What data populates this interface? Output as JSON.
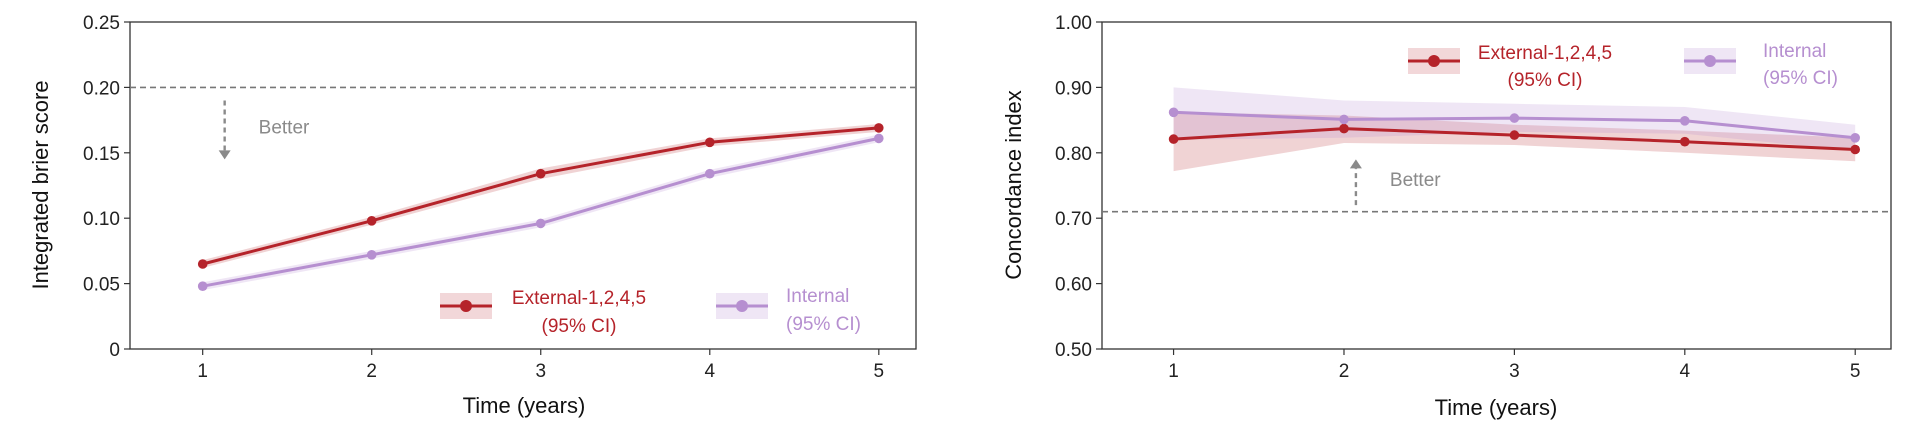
{
  "chart_data": [
    {
      "type": "line",
      "title": "",
      "xlabel": "Time (years)",
      "ylabel": "Integrated brier score",
      "x": [
        1,
        2,
        3,
        4,
        5
      ],
      "xticks": [
        "1",
        "2",
        "3",
        "4",
        "5"
      ],
      "xlim": [
        0.57,
        5.22
      ],
      "ylim": [
        0,
        0.25
      ],
      "yticks": [
        0,
        0.05,
        0.1,
        0.15,
        0.2,
        0.25
      ],
      "ytick_labels": [
        "0",
        "0.05",
        "0.10",
        "0.15",
        "0.20",
        "0.25"
      ],
      "grid": false,
      "legend_position": "bottom-right",
      "series": [
        {
          "name": "External-1,2,4,5",
          "ci_label": "(95% CI)",
          "color": "#b5232a",
          "values": [
            0.065,
            0.098,
            0.134,
            0.158,
            0.169
          ],
          "ci_lower": [
            0.062,
            0.095,
            0.13,
            0.155,
            0.166
          ],
          "ci_upper": [
            0.068,
            0.101,
            0.138,
            0.161,
            0.172
          ]
        },
        {
          "name": "Internal",
          "ci_label": "(95% CI)",
          "color": "#b68fd0",
          "values": [
            0.048,
            0.072,
            0.096,
            0.134,
            0.161
          ],
          "ci_lower": [
            0.045,
            0.069,
            0.093,
            0.131,
            0.158
          ],
          "ci_upper": [
            0.051,
            0.075,
            0.099,
            0.137,
            0.164
          ]
        }
      ],
      "reference_line": {
        "y": 0.2,
        "style": "dashed",
        "color": "#777777"
      },
      "annotation": {
        "text": "Better",
        "direction": "down",
        "x": 1.13,
        "y_from": 0.19,
        "y_to": 0.145,
        "label_y": 0.17
      }
    },
    {
      "type": "line",
      "title": "",
      "xlabel": "Time (years)",
      "ylabel": "Concordance index",
      "x": [
        1,
        2,
        3,
        4,
        5
      ],
      "xticks": [
        "1",
        "2",
        "3",
        "4",
        "5"
      ],
      "xlim": [
        0.58,
        5.21
      ],
      "ylim": [
        0.5,
        1.0
      ],
      "yticks": [
        0.5,
        0.6,
        0.7,
        0.8,
        0.9,
        1.0
      ],
      "ytick_labels": [
        "0.50",
        "0.60",
        "0.70",
        "0.80",
        "0.90",
        "1.00"
      ],
      "grid": false,
      "legend_position": "top-right",
      "series": [
        {
          "name": "External-1,2,4,5",
          "ci_label": "(95% CI)",
          "color": "#b5232a",
          "values": [
            0.821,
            0.837,
            0.827,
            0.817,
            0.805
          ],
          "ci_lower": [
            0.772,
            0.815,
            0.812,
            0.8,
            0.787
          ],
          "ci_upper": [
            0.862,
            0.857,
            0.843,
            0.834,
            0.823
          ]
        },
        {
          "name": "Internal",
          "ci_label": "(95% CI)",
          "color": "#b68fd0",
          "values": [
            0.862,
            0.851,
            0.853,
            0.849,
            0.823
          ],
          "ci_lower": [
            0.82,
            0.823,
            0.832,
            0.829,
            0.803
          ],
          "ci_upper": [
            0.9,
            0.88,
            0.875,
            0.87,
            0.843
          ]
        }
      ],
      "reference_line": {
        "y": 0.71,
        "style": "dashed",
        "color": "#777777"
      },
      "annotation": {
        "text": "Better",
        "direction": "up",
        "x": 2.07,
        "y_from": 0.72,
        "y_to": 0.79,
        "label_y": 0.76
      }
    }
  ]
}
